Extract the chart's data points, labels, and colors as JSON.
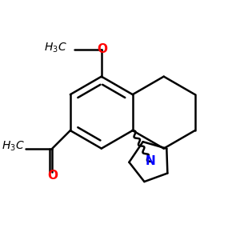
{
  "background": "#ffffff",
  "atom_colors": {
    "O": "#ff0000",
    "N": "#0000ff",
    "C": "#000000"
  },
  "bond_lw": 1.8,
  "figure_size": [
    3.0,
    3.0
  ],
  "dpi": 100,
  "xlim": [
    -2.2,
    2.2
  ],
  "ylim": [
    -2.2,
    2.2
  ]
}
